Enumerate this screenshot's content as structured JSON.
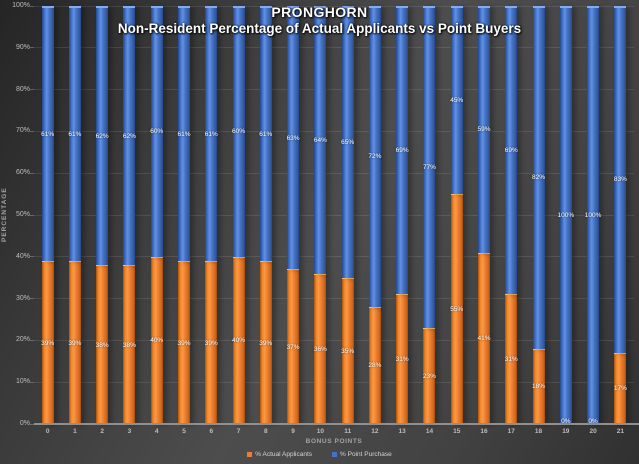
{
  "title": {
    "line1": "PRONGHORN",
    "line2": "Non-Resident Percentage of Actual Applicants vs Point Buyers"
  },
  "chart_data": {
    "type": "bar",
    "stacked": true,
    "title": "PRONGHORN — Non-Resident Percentage of Actual Applicants vs Point Buyers",
    "xlabel": "BONUS POINTS",
    "ylabel": "PERCENTAGE",
    "ylim": [
      0,
      100
    ],
    "grid": true,
    "legend_position": "bottom",
    "categories": [
      "0",
      "1",
      "2",
      "3",
      "4",
      "5",
      "6",
      "7",
      "8",
      "9",
      "10",
      "11",
      "12",
      "13",
      "14",
      "15",
      "16",
      "17",
      "18",
      "19",
      "20",
      "21"
    ],
    "y_ticks": [
      "0%",
      "10%",
      "20%",
      "30%",
      "40%",
      "50%",
      "60%",
      "70%",
      "80%",
      "90%",
      "100%"
    ],
    "series": [
      {
        "name": "% Actual Applicants",
        "color": "#ED7D31",
        "values": [
          39,
          39,
          38,
          38,
          40,
          39,
          39,
          40,
          39,
          37,
          36,
          35,
          28,
          31,
          23,
          55,
          41,
          31,
          18,
          0,
          0,
          17
        ],
        "labels": [
          "39%",
          "39%",
          "38%",
          "38%",
          "40%",
          "39%",
          "39%",
          "40%",
          "39%",
          "37%",
          "36%",
          "35%",
          "28%",
          "31%",
          "23%",
          "55%",
          "41%",
          "31%",
          "18%",
          "0%",
          "0%",
          "17%"
        ]
      },
      {
        "name": "% Point Purchase",
        "color": "#4472C4",
        "values": [
          61,
          61,
          62,
          62,
          60,
          61,
          61,
          60,
          61,
          63,
          64,
          65,
          72,
          69,
          77,
          45,
          59,
          69,
          82,
          100,
          100,
          83
        ],
        "labels": [
          "61%",
          "61%",
          "62%",
          "62%",
          "60%",
          "61%",
          "61%",
          "60%",
          "61%",
          "63%",
          "64%",
          "65%",
          "72%",
          "69%",
          "77%",
          "45%",
          "59%",
          "69%",
          "82%",
          "100%",
          "100%",
          "83%"
        ]
      }
    ]
  },
  "colors": {
    "background_dark": "#2a2a2a",
    "background_light": "#4d4d4d",
    "bar_blue": "#4472C4",
    "bar_orange": "#ED7D31",
    "gridline": "rgba(255,255,255,0.10)",
    "axis_line": "#8f8f8f",
    "tick_text": "#bdbdbd",
    "axis_title_text": "#a3a3a3",
    "data_label_text": "#ffffff",
    "title_text": "#ffffff"
  }
}
